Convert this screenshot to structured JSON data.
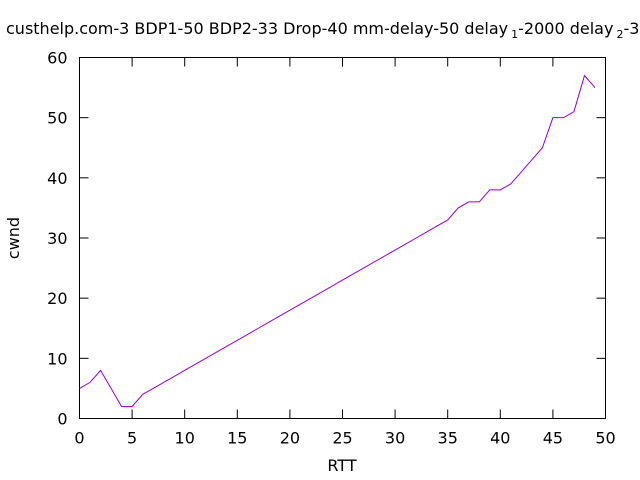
{
  "chart_data": {
    "type": "line",
    "title": "custhelp.com-3 BDP1-50 BDP2-33 Drop-40 mm-delay-50 delay",
    "title_sub1": "1",
    "title_mid": "-2000 delay",
    "title_sub2": "2",
    "title_tail": "-3",
    "xlabel": "RTT",
    "ylabel": "cwnd",
    "xlim": [
      0,
      50
    ],
    "ylim": [
      0,
      60
    ],
    "xticks": [
      0,
      5,
      10,
      15,
      20,
      25,
      30,
      35,
      40,
      45,
      50
    ],
    "yticks": [
      0,
      10,
      20,
      30,
      40,
      50,
      60
    ],
    "grid": false,
    "legend": "none",
    "series_color": "#9400d3",
    "series": [
      {
        "x": [
          0,
          1,
          2,
          3,
          4,
          5,
          6,
          7,
          8,
          9,
          10,
          11,
          12,
          13,
          14,
          15,
          16,
          17,
          18,
          19,
          20,
          21,
          22,
          23,
          24,
          25,
          26,
          27,
          28,
          29,
          30,
          31,
          32,
          33,
          34,
          35,
          36,
          37,
          38,
          39,
          40,
          41,
          42,
          43,
          44,
          45,
          46,
          47,
          48,
          49
        ],
        "values": [
          5,
          6,
          8,
          5,
          2,
          2,
          4,
          5,
          6,
          7,
          8,
          9,
          10,
          11,
          12,
          13,
          14,
          15,
          16,
          17,
          18,
          19,
          20,
          21,
          22,
          23,
          24,
          25,
          26,
          27,
          28,
          29,
          30,
          31,
          32,
          33,
          35,
          36,
          36,
          38,
          38,
          39,
          41,
          43,
          45,
          50,
          50,
          51,
          57,
          55
        ]
      }
    ]
  }
}
